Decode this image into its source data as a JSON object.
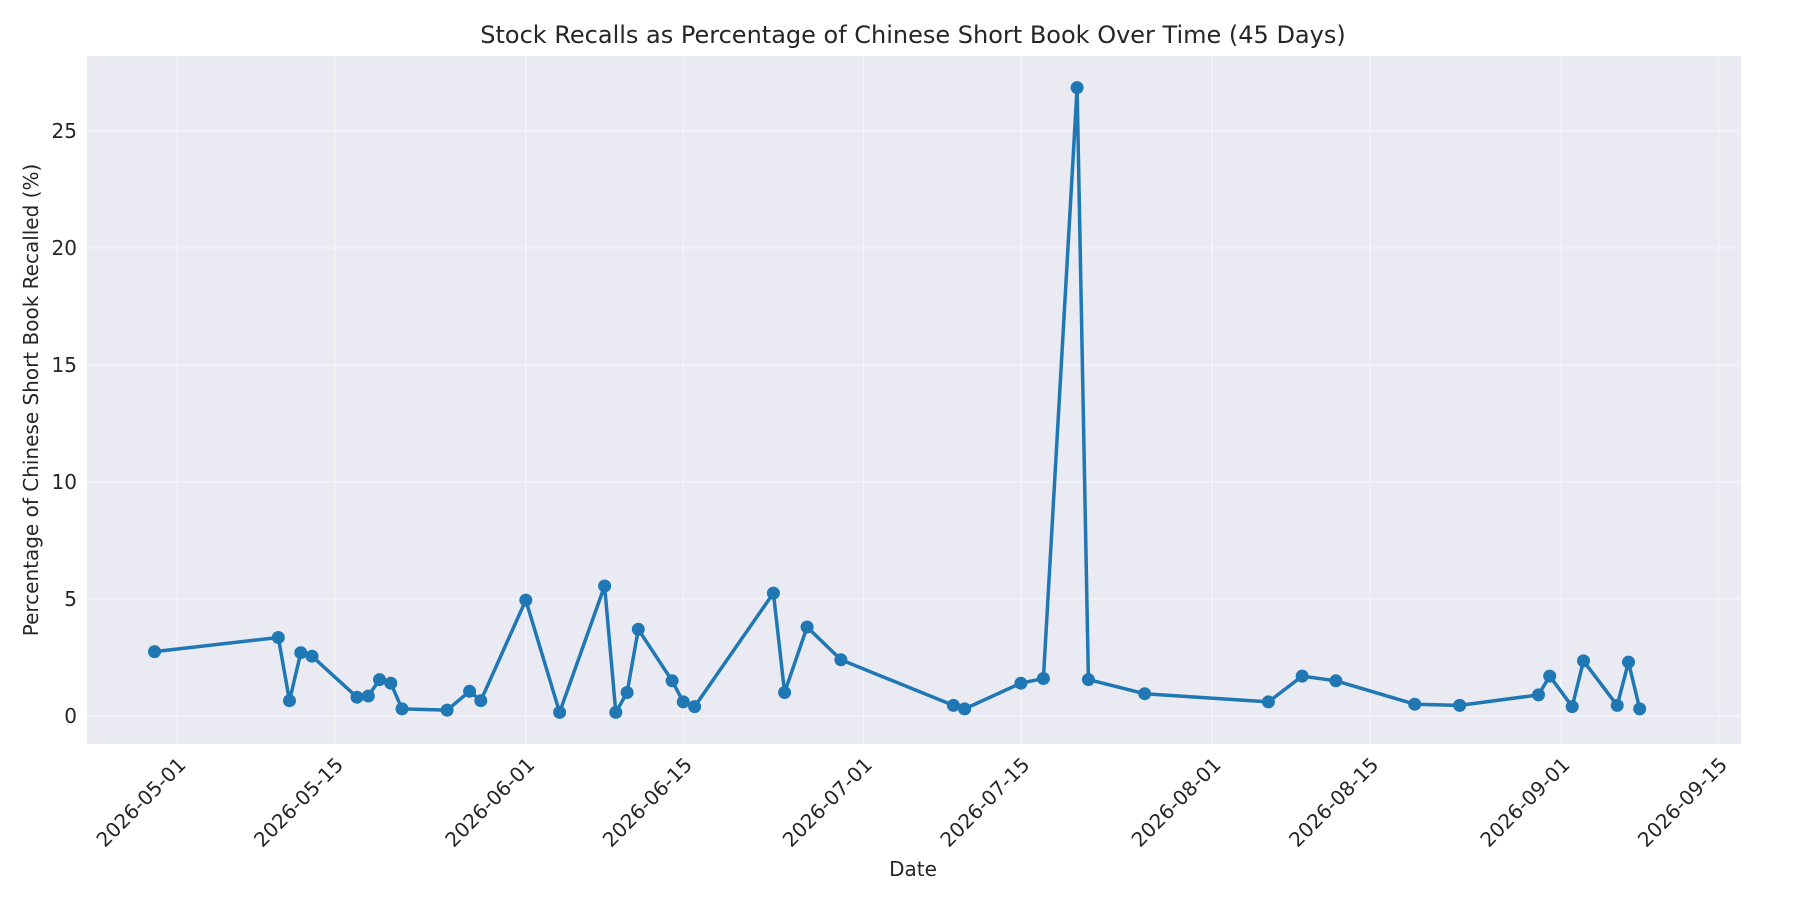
{
  "chart_data": {
    "type": "line",
    "title": "Stock Recalls as Percentage of Chinese Short Book Over Time (45 Days)",
    "xlabel": "Date",
    "ylabel": "Percentage of Chinese Short Book Recalled (%)",
    "xlim": [
      "2026-04-23",
      "2026-09-17"
    ],
    "ylim": [
      -1.2,
      28.2
    ],
    "x_ticks": [
      "2026-05-01",
      "2026-05-15",
      "2026-06-01",
      "2026-06-15",
      "2026-07-01",
      "2026-07-15",
      "2026-08-01",
      "2026-08-15",
      "2026-09-01",
      "2026-09-15"
    ],
    "y_ticks": [
      0,
      5,
      10,
      15,
      20,
      25
    ],
    "grid": true,
    "colors": {
      "line": "#1f77b4",
      "plot_bg": "#eaeaf2",
      "grid": "#ffffff"
    },
    "series": [
      {
        "x": [
          "2026-04-29",
          "2026-05-10",
          "2026-05-11",
          "2026-05-12",
          "2026-05-13",
          "2026-05-17",
          "2026-05-18",
          "2026-05-19",
          "2026-05-20",
          "2026-05-21",
          "2026-05-25",
          "2026-05-27",
          "2026-05-28",
          "2026-06-01",
          "2026-06-04",
          "2026-06-08",
          "2026-06-09",
          "2026-06-10",
          "2026-06-11",
          "2026-06-14",
          "2026-06-15",
          "2026-06-16",
          "2026-06-23",
          "2026-06-24",
          "2026-06-26",
          "2026-06-29",
          "2026-07-09",
          "2026-07-10",
          "2026-07-15",
          "2026-07-17",
          "2026-07-20",
          "2026-07-21",
          "2026-07-26",
          "2026-08-06",
          "2026-08-09",
          "2026-08-12",
          "2026-08-19",
          "2026-08-23",
          "2026-08-30",
          "2026-08-31",
          "2026-09-02",
          "2026-09-03",
          "2026-09-06",
          "2026-09-07",
          "2026-09-08"
        ],
        "values": [
          2.75,
          3.35,
          0.65,
          2.7,
          2.55,
          0.8,
          0.85,
          1.55,
          1.4,
          0.3,
          0.25,
          1.05,
          0.65,
          4.95,
          0.15,
          5.55,
          0.15,
          1.0,
          3.7,
          1.5,
          0.6,
          0.4,
          5.25,
          1.0,
          3.8,
          2.4,
          0.45,
          0.3,
          1.4,
          1.6,
          26.85,
          1.55,
          0.95,
          0.6,
          1.7,
          1.5,
          0.5,
          0.45,
          0.9,
          1.7,
          0.4,
          2.35,
          0.45,
          2.3,
          0.3
        ]
      }
    ]
  }
}
